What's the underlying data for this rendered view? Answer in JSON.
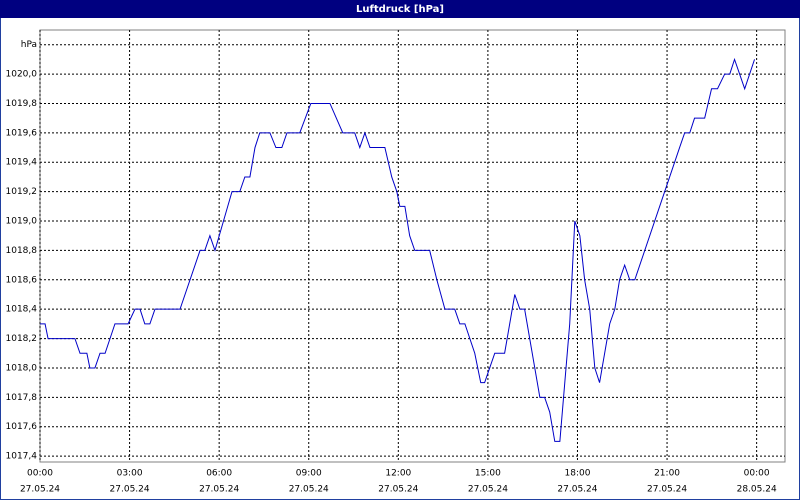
{
  "chart_data": {
    "type": "line",
    "title": "Luftdruck [hPa]",
    "x": [
      0,
      0.17,
      0.27,
      1.17,
      1.34,
      1.57,
      1.67,
      1.84,
      2.01,
      2.18,
      2.51,
      2.95,
      3.18,
      3.35,
      3.51,
      3.68,
      3.85,
      4.69,
      5.36,
      5.52,
      5.69,
      5.86,
      6.43,
      6.69,
      6.86,
      7.03,
      7.2,
      7.36,
      7.7,
      7.9,
      8.1,
      8.27,
      8.7,
      9.07,
      9.71,
      10.14,
      10.54,
      10.71,
      10.88,
      11.05,
      11.55,
      11.78,
      11.95,
      12.05,
      12.22,
      12.38,
      12.55,
      13.05,
      13.29,
      13.56,
      13.89,
      14.06,
      14.23,
      14.56,
      14.76,
      14.89,
      15.06,
      15.23,
      15.56,
      15.9,
      16.07,
      16.23,
      16.74,
      16.9,
      17.07,
      17.24,
      17.41,
      17.74,
      17.91,
      18.08,
      18.24,
      18.41,
      18.58,
      18.74,
      19.08,
      19.25,
      19.41,
      19.58,
      19.75,
      19.92,
      21.42,
      21.59,
      21.76,
      21.92,
      22.26,
      22.49,
      22.69,
      22.93,
      23.1,
      23.26,
      23.43,
      23.6,
      23.93
    ],
    "series": [
      {
        "color": "#0000c8",
        "values": [
          1018.3,
          1018.3,
          1018.2,
          1018.2,
          1018.1,
          1018.1,
          1018.0,
          1018.0,
          1018.1,
          1018.1,
          1018.3,
          1018.3,
          1018.4,
          1018.4,
          1018.3,
          1018.3,
          1018.4,
          1018.4,
          1018.8,
          1018.8,
          1018.9,
          1018.8,
          1019.2,
          1019.2,
          1019.3,
          1019.3,
          1019.5,
          1019.6,
          1019.6,
          1019.5,
          1019.5,
          1019.6,
          1019.6,
          1019.8,
          1019.8,
          1019.6,
          1019.6,
          1019.5,
          1019.6,
          1019.5,
          1019.5,
          1019.3,
          1019.2,
          1019.1,
          1019.1,
          1018.9,
          1018.8,
          1018.8,
          1018.6,
          1018.4,
          1018.4,
          1018.3,
          1018.3,
          1018.1,
          1017.9,
          1017.9,
          1018.0,
          1018.1,
          1018.1,
          1018.5,
          1018.4,
          1018.4,
          1017.8,
          1017.8,
          1017.7,
          1017.5,
          1017.5,
          1018.3,
          1019.0,
          1018.9,
          1018.6,
          1018.4,
          1018.0,
          1017.9,
          1018.3,
          1018.4,
          1018.6,
          1018.7,
          1018.6,
          1018.6,
          1019.5,
          1019.6,
          1019.6,
          1019.7,
          1019.7,
          1019.9,
          1019.9,
          1020.0,
          1020.0,
          1020.1,
          1020.0,
          1019.9,
          1020.1
        ]
      }
    ],
    "xlim": [
      0,
      24.95
    ],
    "ylim": [
      1017.36,
      1020.3
    ],
    "xticks": [
      {
        "value": 0,
        "label": [
          "00:00",
          "27.05.24"
        ]
      },
      {
        "value": 3,
        "label": [
          "03:00",
          "27.05.24"
        ]
      },
      {
        "value": 6,
        "label": [
          "06:00",
          "27.05.24"
        ]
      },
      {
        "value": 9,
        "label": [
          "09:00",
          "27.05.24"
        ]
      },
      {
        "value": 12,
        "label": [
          "12:00",
          "27.05.24"
        ]
      },
      {
        "value": 15,
        "label": [
          "15:00",
          "27.05.24"
        ]
      },
      {
        "value": 18,
        "label": [
          "18:00",
          "27.05.24"
        ]
      },
      {
        "value": 21,
        "label": [
          "21:00",
          "27.05.24"
        ]
      },
      {
        "value": 24,
        "label": [
          "00:00",
          "28.05.24"
        ]
      }
    ],
    "yticks": [
      {
        "value": 1017.4,
        "label": "1017,4"
      },
      {
        "value": 1017.6,
        "label": "1017,6"
      },
      {
        "value": 1017.8,
        "label": "1017,8"
      },
      {
        "value": 1018.0,
        "label": "1018,0"
      },
      {
        "value": 1018.2,
        "label": "1018,2"
      },
      {
        "value": 1018.4,
        "label": "1018,4"
      },
      {
        "value": 1018.6,
        "label": "1018,6"
      },
      {
        "value": 1018.8,
        "label": "1018,8"
      },
      {
        "value": 1019.0,
        "label": "1019,0"
      },
      {
        "value": 1019.2,
        "label": "1019,2"
      },
      {
        "value": 1019.4,
        "label": "1019,4"
      },
      {
        "value": 1019.6,
        "label": "1019,6"
      },
      {
        "value": 1019.8,
        "label": "1019,8"
      },
      {
        "value": 1020.0,
        "label": "1020,0"
      },
      {
        "value": 1020.2,
        "label": "hPa"
      }
    ],
    "grid": true
  }
}
